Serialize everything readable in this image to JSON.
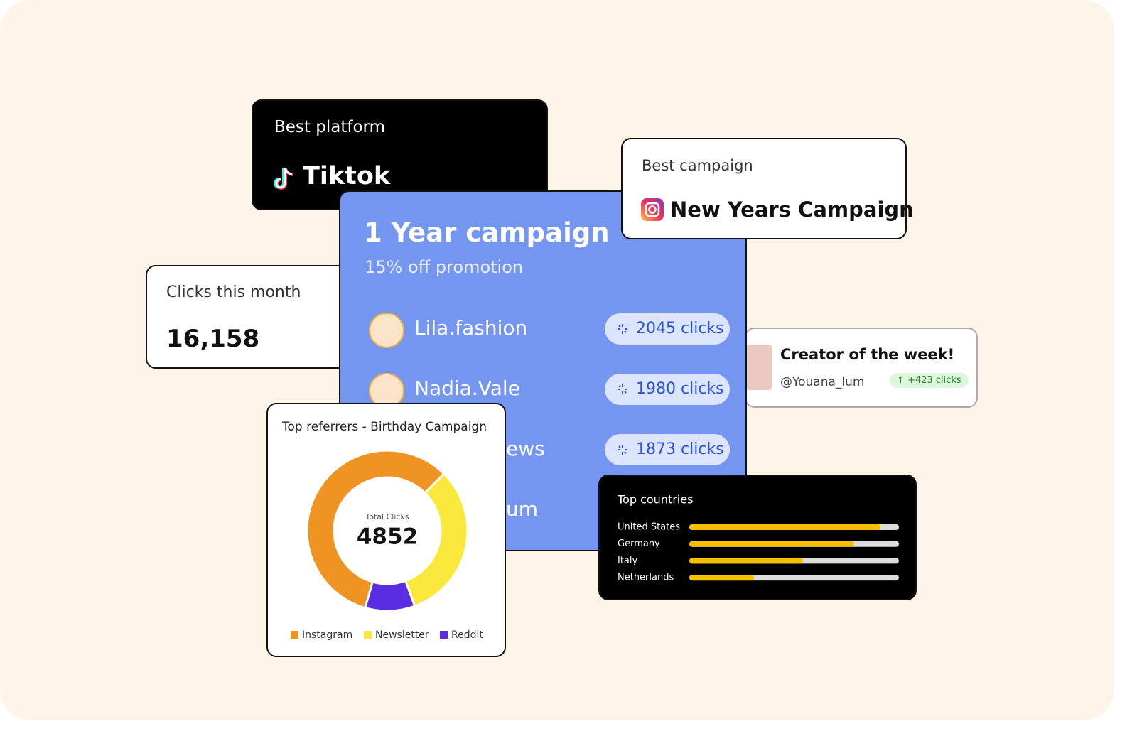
{
  "best_platform": {
    "label": "Best platform",
    "name": "Tiktok"
  },
  "best_campaign": {
    "label": "Best campaign",
    "name": "New Years Campaign"
  },
  "clicks_month": {
    "label": "Clicks this month",
    "value": "16,158"
  },
  "campaign": {
    "title": "1 Year campaign",
    "subtitle": "15% off promotion",
    "rows": [
      {
        "name": "Lila.fashion",
        "clicks": "2045 clicks"
      },
      {
        "name": "Nadia.Vale",
        "clicks": "1980 clicks"
      },
      {
        "name": "ews",
        "clicks": "1873 clicks"
      },
      {
        "name": "um"
      }
    ]
  },
  "creator": {
    "title": "Creator of the week!",
    "handle": "@Youana_lum",
    "badge": "↑ +423 clicks"
  },
  "chart_data": [
    {
      "type": "donut",
      "title": "Top referrers - Birthday Campaign",
      "center_label": "Total Clicks",
      "center_value": "4852",
      "categories": [
        "Instagram",
        "Newsletter",
        "Reddit"
      ],
      "values": [
        58,
        32,
        10
      ],
      "colors": [
        "#ef9322",
        "#fbe83c",
        "#5b2de0"
      ]
    },
    {
      "type": "bar",
      "orientation": "horizontal",
      "title": "Top countries",
      "categories": [
        "United States",
        "Germany",
        "Italy",
        "Netherlands"
      ],
      "values": [
        91,
        78,
        53,
        29
      ],
      "xlim": [
        0,
        100
      ],
      "color": "#f5c000",
      "track_color": "#dddddd"
    }
  ]
}
